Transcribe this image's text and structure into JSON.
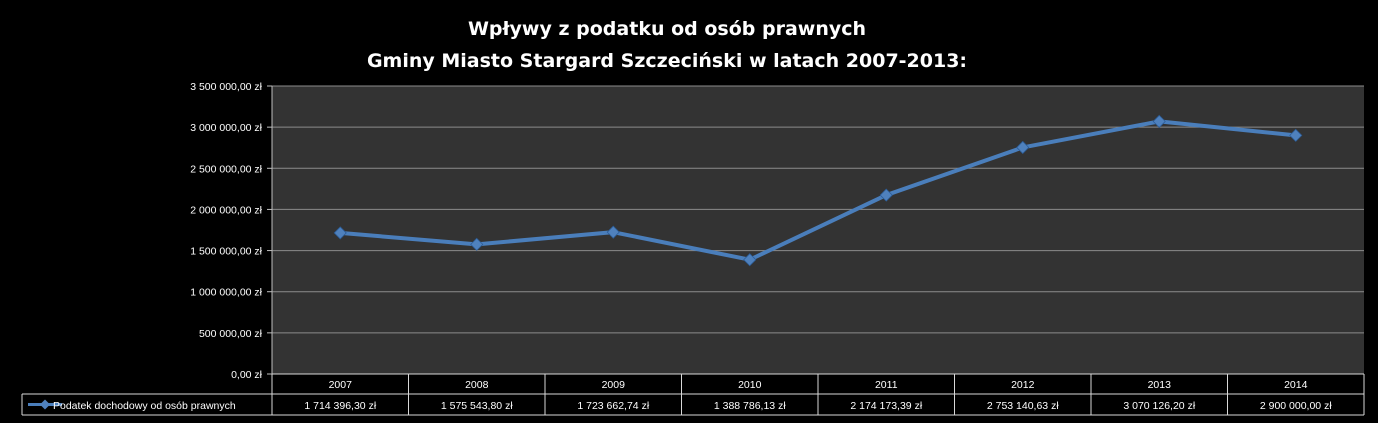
{
  "chart_data": {
    "type": "line",
    "title_lines": [
      "Wpływy z podatku od osób prawnych",
      "Gminy Miasto  Stargard Szczeciński w latach 2007-2013:"
    ],
    "categories": [
      "2007",
      "2008",
      "2009",
      "2010",
      "2011",
      "2012",
      "2013",
      "2014"
    ],
    "series": [
      {
        "name": "Podatek dochodowy od osób prawnych",
        "values": [
          1714396.3,
          1575543.8,
          1723662.74,
          1388786.13,
          2174173.39,
          2753140.63,
          3070126.2,
          2900000.0
        ],
        "value_labels": [
          "1 714 396,30 zł",
          "1 575 543,80 zł",
          "1 723 662,74 zł",
          "1 388 786,13 zł",
          "2 174 173,39 zł",
          "2 753 140,63 zł",
          "3 070 126,20 zł",
          "2 900 000,00 zł"
        ]
      }
    ],
    "yticks": [
      0,
      500000,
      1000000,
      1500000,
      2000000,
      2500000,
      3000000,
      3500000
    ],
    "ytick_labels": [
      "0,00 zł",
      "500 000,00 zł",
      "1 000 000,00 zł",
      "1 500 000,00 zł",
      "2 000 000,00 zł",
      "2 500 000,00 zł",
      "3 000 000,00 zł",
      "3 500 000,00 zł"
    ],
    "ylim": [
      0,
      3500000
    ],
    "grid": true,
    "legend": "data-table",
    "colors": {
      "background": "#000000",
      "plot_area": "#333333",
      "line": "#4a7ebb",
      "marker": "#4f81bd",
      "grid": "#8c8c8c"
    }
  }
}
